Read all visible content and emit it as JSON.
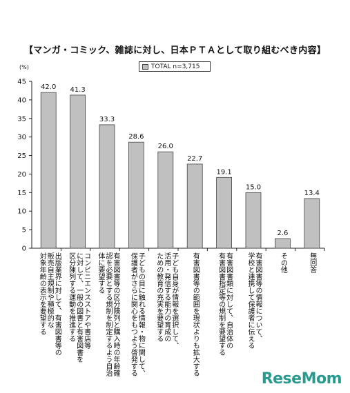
{
  "chart_data": {
    "type": "bar",
    "title": "【マンガ・コミック、雑誌に対し、日本ＰＴＡとして取り組むべき内容】",
    "ylabel": "(%)",
    "ylim": [
      0,
      45
    ],
    "yticks": [
      0,
      5,
      10,
      15,
      20,
      25,
      30,
      35,
      40,
      45
    ],
    "grid": false,
    "legend_position": "top-center",
    "series": [
      {
        "name": "TOTAL n=3,715",
        "color": "#c0c0c0",
        "values": [
          42.0,
          41.3,
          33.3,
          28.6,
          26.0,
          22.7,
          19.1,
          15.0,
          2.6,
          13.4
        ]
      }
    ],
    "data_labels": [
      "42.0",
      "41.3",
      "33.3",
      "28.6",
      "26.0",
      "22.7",
      "19.1",
      "15.0",
      "2.6",
      "13.4"
    ],
    "categories": [
      "出版業界に対して、有害図書等の\n販売自主規制や積極的な\n対象年齢の表示を要望する",
      "コンビニエンスストアや書店等\nに対して、一般の図書と有害図書を\n区分陳列する運動を推進する",
      "有害図書等の区分陳列と購入時の年齢確\n認を必要とする規制を制定するよう自治\n体に要望する",
      "子どもの目に触れる情報・物に関して、\n保護者がさらに関心をもつよう啓発する",
      "子ども自身が情報を選択して、\n活用・発信する能力の育成の\nための教育の充実を要望する",
      "有害図書等の範囲を現状よりも拡大する",
      "有害図書類に対して、自治体の\n有害図書指定等の規制を要望する",
      "有害図書等の情報について、\n学校と連携して保護者に伝える",
      "その他",
      "無回答"
    ]
  },
  "legend_label": "TOTAL n=3,715",
  "watermark": "ReseMom"
}
